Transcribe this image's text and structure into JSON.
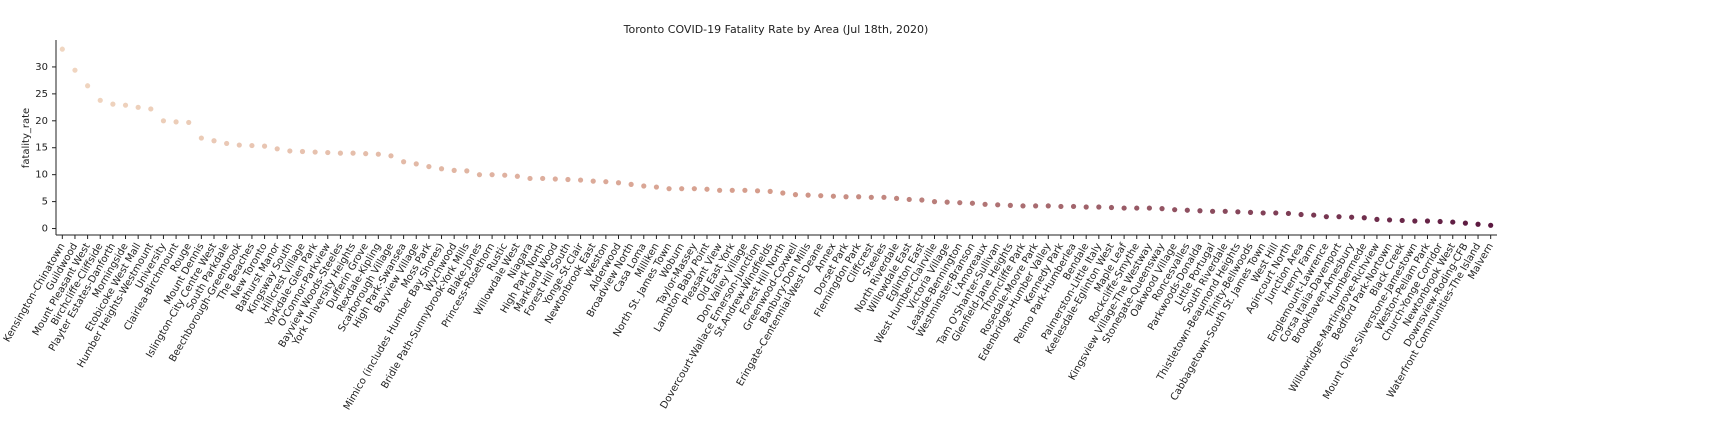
{
  "chart_data": {
    "type": "scatter",
    "title": "Toronto COVID-19 Fatality Rate by Area (Jul 18th, 2020)",
    "y_label": "fatality_rate",
    "categories": [
      "Kensington-Chinatown",
      "Guildwood",
      "Mount Pleasant West",
      "Birchcliffe-Cliffside",
      "Playter Estates-Danforth",
      "Morningside",
      "Etobicoke West Mall",
      "Humber Heights-Westmount",
      "University",
      "Clairlea-Birchmount",
      "Rouge",
      "Mount Dennis",
      "Islington-City Centre West",
      "South Parkdale",
      "Beechborough-Greenbrook",
      "The Beaches",
      "New Toronto",
      "Bathurst Manor",
      "Kingsway South",
      "Hillcrest Village",
      "Yorkdale-Glen Park",
      "O'Connor-Parkview",
      "Bayview Woods-Steeles",
      "York University Heights",
      "Dufferin Grove",
      "Rexdale-Kipling",
      "Scarborough Village",
      "High Park-Swansea",
      "Bayview Village",
      "Moss Park",
      "Mimico (includes Humber Bay Shores)",
      "Wychwood",
      "Bridle Path-Sunnybrook-York Mills",
      "Blake-Jones",
      "Princess-Rosethorn",
      "Rustic",
      "Willowdale West",
      "Niagara",
      "High Park North",
      "Markland Wood",
      "Forest Hill South",
      "Yonge-St.Clair",
      "Newtonbrook East",
      "Weston",
      "Alderwood",
      "Broadview North",
      "Casa Loma",
      "Milliken",
      "North St. James Town",
      "Woburn",
      "Taylor-Massey",
      "Lambton Baby Point",
      "Pleasant View",
      "Old East York",
      "Don Valley Village",
      "Dovercourt-Wallace Emerson-Junction",
      "St.Andrew-Windfields",
      "Forest Hill North",
      "Greenwood-Coxwell",
      "Banbury-Don Mills",
      "Eringate-Centennial-West Deane",
      "Annex",
      "Dorset Park",
      "Flemingdon Park",
      "Cliffcrest",
      "Steeles",
      "North Riverdale",
      "Willowdale East",
      "Eglinton East",
      "West Humber-Clairville",
      "Victoria Village",
      "Leaside-Bennington",
      "Westminster-Branson",
      "L'Amoreaux",
      "Tam O'Shanter-Sullivan",
      "Glenfield-Jane Heights",
      "Thorncliffe Park",
      "Rosedale-Moore Park",
      "Edenbridge-Humber Valley",
      "Kennedy Park",
      "Pelmo Park-Humberlea",
      "Bendale",
      "Palmerston-Little Italy",
      "Keelesdale-Eglinton West",
      "Maple Leaf",
      "Rockcliffe-Smythe",
      "Kingsview Village-The Westway",
      "Stonegate-Queensway",
      "Oakwood Village",
      "Roncesvalles",
      "Parkwoods-Donalda",
      "Little Portugal",
      "South Riverdale",
      "Thistletown-Beaumond Heights",
      "Trinity-Bellwoods",
      "Cabbagetown-South St. James Town",
      "West Hill",
      "Agincourt North",
      "Junction Area",
      "Henry Farm",
      "Englemount-Lawrence",
      "Corsa Italia-Davenport",
      "Brookhaven-Amesbury",
      "Humbermede",
      "Willowridge-Martingrove-Richview",
      "Bedford Park-Nortown",
      "Black Creek",
      "Mount Olive-Silverstone-Jamestown",
      "Weston-Pellam Park",
      "Church-Yonge Corridor",
      "Newtonbrook West",
      "Downsview-Roding-CFB",
      "Waterfront Communities-The Island",
      "Malvern"
    ],
    "values": [
      33.3,
      29.4,
      26.5,
      23.8,
      23.1,
      22.9,
      22.5,
      22.2,
      20.0,
      19.8,
      19.7,
      16.8,
      16.3,
      15.8,
      15.5,
      15.4,
      15.3,
      14.8,
      14.4,
      14.3,
      14.2,
      14.1,
      14.0,
      14.0,
      13.9,
      13.8,
      13.5,
      12.4,
      12.0,
      11.5,
      11.1,
      10.8,
      10.7,
      10.0,
      10.0,
      9.9,
      9.7,
      9.3,
      9.3,
      9.2,
      9.1,
      9.0,
      8.8,
      8.7,
      8.5,
      8.2,
      7.9,
      7.7,
      7.4,
      7.4,
      7.4,
      7.3,
      7.1,
      7.1,
      7.1,
      7.0,
      6.9,
      6.6,
      6.3,
      6.2,
      6.1,
      6.0,
      5.9,
      5.9,
      5.8,
      5.8,
      5.6,
      5.4,
      5.3,
      5.0,
      4.9,
      4.8,
      4.7,
      4.5,
      4.4,
      4.3,
      4.2,
      4.2,
      4.2,
      4.1,
      4.1,
      4.0,
      4.0,
      3.9,
      3.8,
      3.8,
      3.8,
      3.7,
      3.5,
      3.4,
      3.3,
      3.2,
      3.2,
      3.1,
      3.0,
      2.9,
      2.9,
      2.8,
      2.6,
      2.5,
      2.2,
      2.2,
      2.1,
      2.0,
      1.7,
      1.6,
      1.5,
      1.4,
      1.4,
      1.3,
      1.2,
      1.0,
      0.8,
      0.6
    ],
    "palette": [
      "#f0d6c1",
      "#d49b8b",
      "#5b1840"
    ],
    "ylim": [
      -1.2,
      35
    ],
    "yticks": [
      0,
      5,
      10,
      15,
      20,
      25,
      30
    ]
  }
}
